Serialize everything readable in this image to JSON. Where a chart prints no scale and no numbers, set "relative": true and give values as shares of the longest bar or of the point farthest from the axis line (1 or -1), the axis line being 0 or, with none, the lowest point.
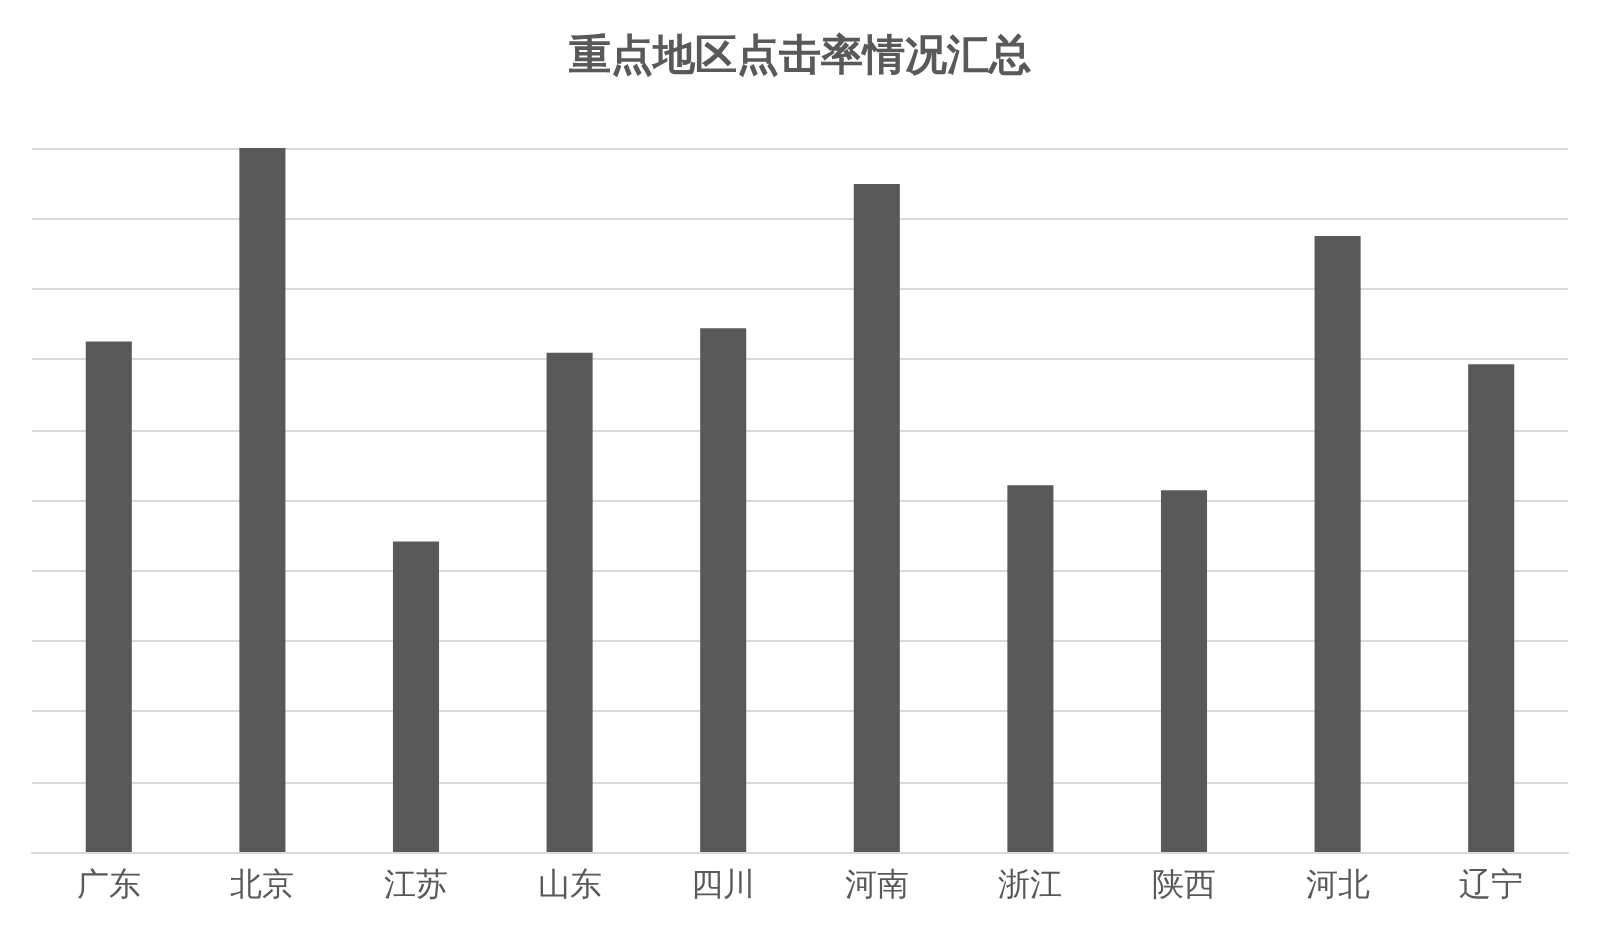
{
  "chart_data": {
    "type": "bar",
    "title": "重点地区点击率情况汇总",
    "relative": true,
    "grid": "y",
    "categories": [
      "广东",
      "北京",
      "江苏",
      "山东",
      "四川",
      "河南",
      "浙江",
      "陕西",
      "河北",
      "辽宁"
    ],
    "color": "#595959",
    "values": [
      0.725,
      1,
      0.441,
      0.709,
      0.744,
      0.949,
      0.521,
      0.514,
      0.875,
      0.693
    ]
  }
}
